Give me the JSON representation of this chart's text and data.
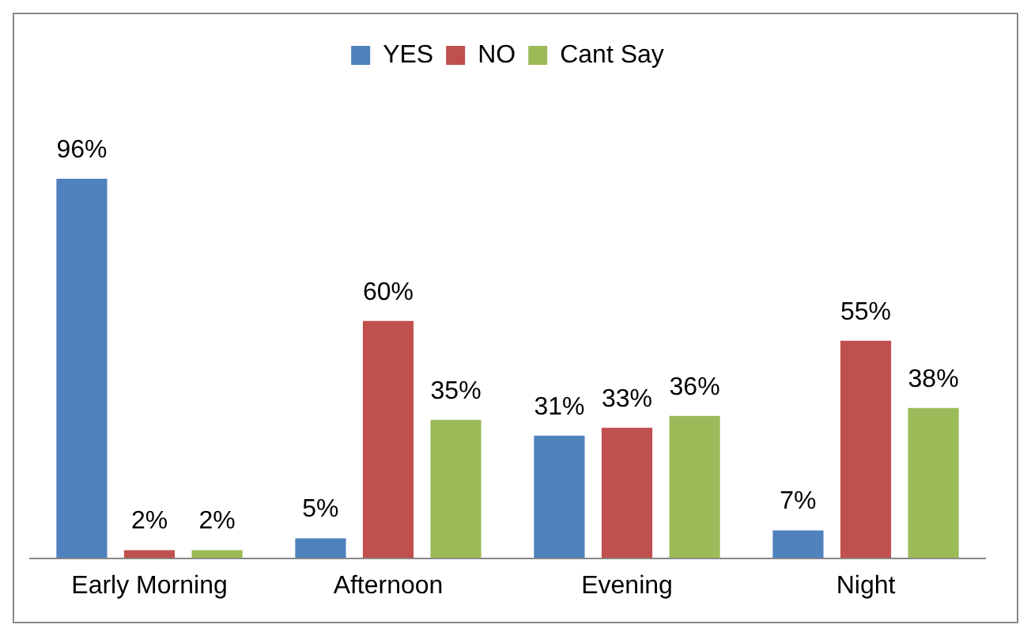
{
  "chart_data": {
    "type": "bar",
    "categories": [
      "Early Morning",
      "Afternoon",
      "Evening",
      "Night"
    ],
    "series": [
      {
        "name": "YES",
        "color": "#4f81bd",
        "values": [
          96,
          5,
          31,
          7
        ],
        "value_labels": [
          "96%",
          "5%",
          "31%",
          "7%"
        ]
      },
      {
        "name": "NO",
        "color": "#c0504d",
        "values": [
          2,
          60,
          33,
          55
        ],
        "value_labels": [
          "2%",
          "60%",
          "33%",
          "55%"
        ]
      },
      {
        "name": "Cant Say",
        "color": "#9bbb59",
        "values": [
          2,
          35,
          36,
          38
        ],
        "value_labels": [
          "2%",
          "35%",
          "36%",
          "38%"
        ]
      }
    ],
    "legend": "top",
    "grid": false
  }
}
